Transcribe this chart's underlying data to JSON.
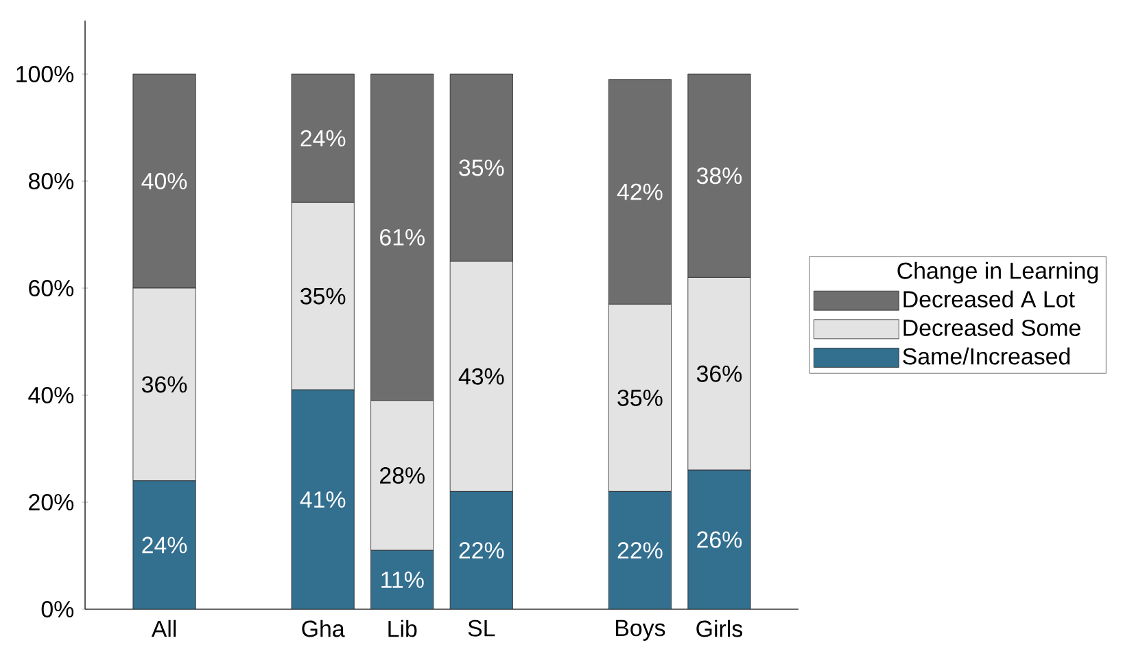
{
  "chart_data": {
    "type": "bar",
    "stacked": true,
    "categories": [
      "All",
      null,
      "Gha",
      "Lib",
      "SL",
      null,
      "Boys",
      "Girls"
    ],
    "series": [
      {
        "name": "Same/Increased",
        "color": "#336f8f",
        "values": [
          24,
          null,
          41,
          11,
          22,
          null,
          22,
          26
        ],
        "value_labels": [
          "24%",
          null,
          "41%",
          "11%",
          "22%",
          null,
          "22%",
          "26%"
        ]
      },
      {
        "name": "Decreased Some",
        "color": "#e3e3e3",
        "values": [
          36,
          null,
          35,
          28,
          43,
          null,
          35,
          36
        ],
        "value_labels": [
          "36%",
          null,
          "35%",
          "28%",
          "43%",
          null,
          "35%",
          "36%"
        ]
      },
      {
        "name": "Decreased A Lot",
        "color": "#6e6e6e",
        "values": [
          40,
          null,
          24,
          61,
          35,
          null,
          42,
          38
        ],
        "value_labels": [
          "40%",
          null,
          "24%",
          "61%",
          "35%",
          null,
          "42%",
          "38%"
        ]
      }
    ],
    "legend_title": "Change in Learning",
    "legend": "right",
    "ylim": [
      0,
      110
    ],
    "yticks": [
      {
        "value": 0,
        "label": "0%"
      },
      {
        "value": 20,
        "label": "20%"
      },
      {
        "value": 40,
        "label": "40%"
      },
      {
        "value": 60,
        "label": "60%"
      },
      {
        "value": 80,
        "label": "80%"
      },
      {
        "value": 100,
        "label": "100%"
      }
    ]
  }
}
